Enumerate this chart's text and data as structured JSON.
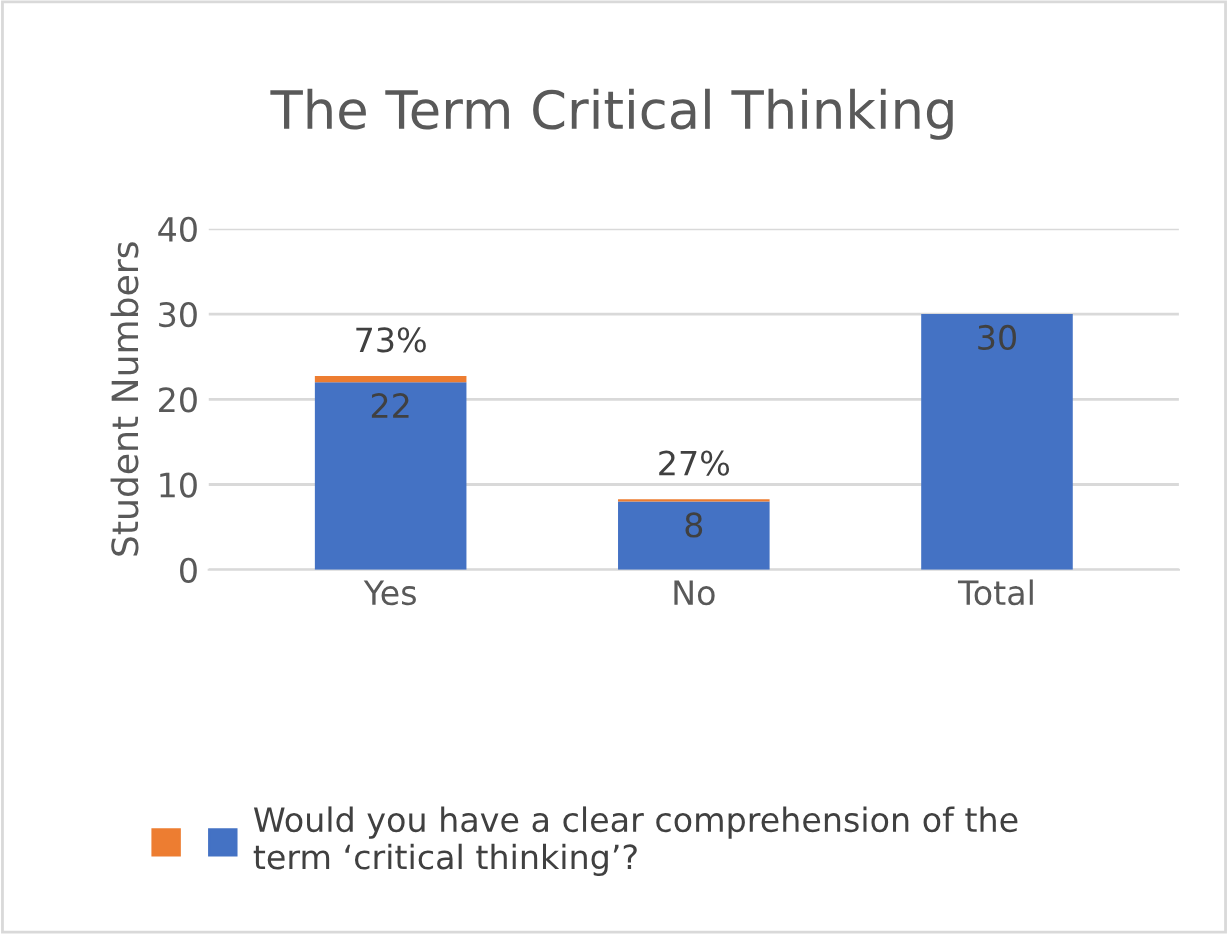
{
  "chart_data": {
    "type": "bar",
    "title": "The Term Critical Thinking",
    "ylabel": "Student Numbers",
    "categories": [
      "Yes",
      "No",
      "Total"
    ],
    "stacked": true,
    "series": [
      {
        "name": "Would you have a clear comprehension of the\nterm ‘critical thinking’?",
        "color": "#4472c4",
        "values": [
          22,
          8,
          30
        ],
        "value_labels": [
          "22",
          "8",
          "30"
        ]
      },
      {
        "color": "#ed7d31",
        "values": [
          0.73,
          0.27,
          null
        ],
        "value_labels": [
          "73%",
          "27%",
          null
        ]
      }
    ],
    "ylim": [
      0,
      40
    ],
    "yticks": [
      0,
      10,
      20,
      30,
      40
    ],
    "grid": "y",
    "legend": "bottom"
  }
}
